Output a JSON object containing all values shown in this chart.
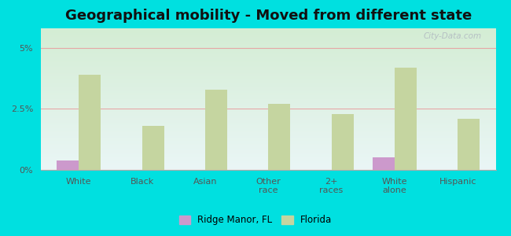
{
  "title": "Geographical mobility - Moved from different state",
  "categories": [
    "White",
    "Black",
    "Asian",
    "Other\nrace",
    "2+\nraces",
    "White\nalone",
    "Hispanic"
  ],
  "ridge_manor_values": [
    0.4,
    0.0,
    0.0,
    0.0,
    0.0,
    0.5,
    0.0
  ],
  "florida_values": [
    3.9,
    1.8,
    3.3,
    2.7,
    2.3,
    4.2,
    2.1
  ],
  "ridge_manor_color": "#cc99cc",
  "florida_color": "#c5d5a0",
  "background_outer": "#00e0e0",
  "yticks": [
    0,
    2.5,
    5
  ],
  "ytick_labels": [
    "0%",
    "2.5%",
    "5%"
  ],
  "ylim": [
    0,
    5.8
  ],
  "legend_labels": [
    "Ridge Manor, FL",
    "Florida"
  ],
  "bar_width": 0.35,
  "title_fontsize": 13,
  "watermark": "City-Data.com"
}
